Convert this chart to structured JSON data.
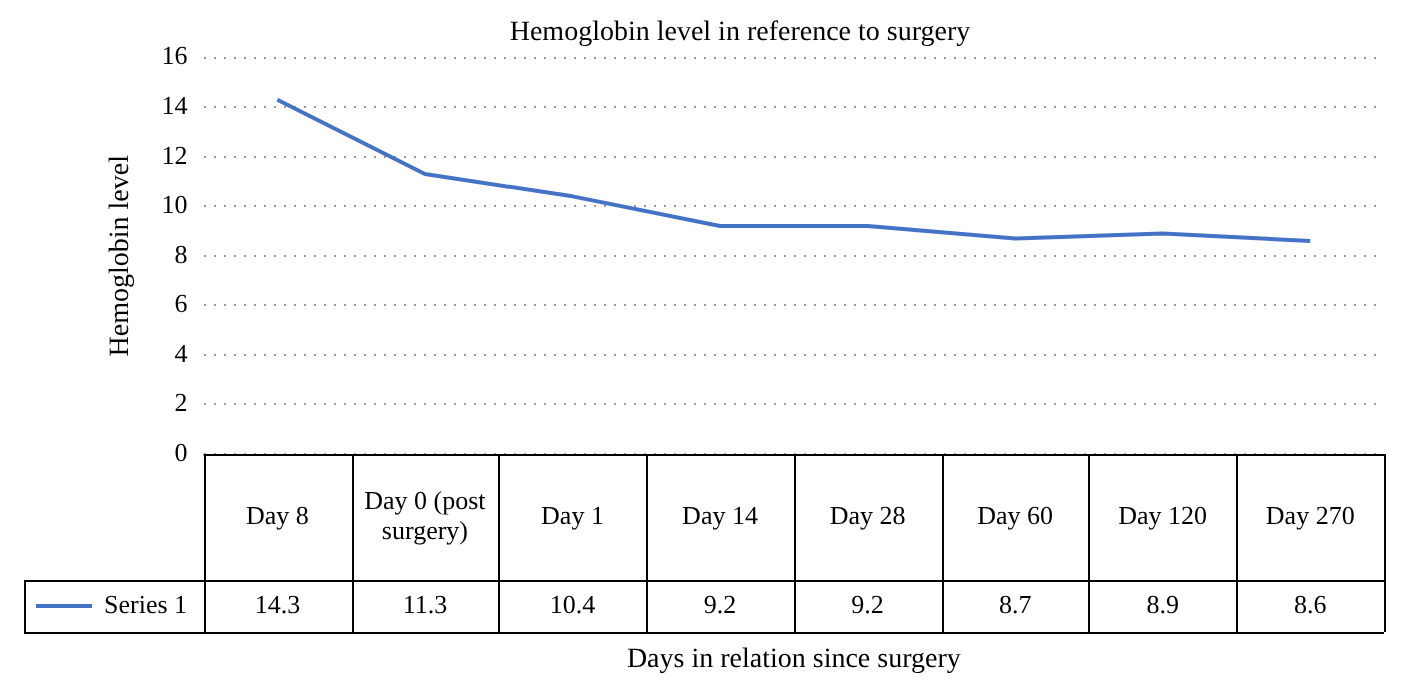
{
  "chart_data": {
    "type": "line",
    "title": "Hemoglobin level in reference to surgery",
    "xlabel": "Days in relation since surgery",
    "ylabel": "Hemoglobin level",
    "categories": [
      "Day 8",
      "Day 0 (post surgery)",
      "Day 1",
      "Day 14",
      "Day 28",
      "Day 60",
      "Day 120",
      "Day 270"
    ],
    "series": [
      {
        "name": "Series 1",
        "color": "#4472c4",
        "values": [
          14.3,
          11.3,
          10.4,
          9.2,
          9.2,
          8.7,
          8.9,
          8.6
        ]
      }
    ],
    "ylim": [
      0,
      16
    ],
    "yticks": [
      0,
      2,
      4,
      6,
      8,
      10,
      12,
      14,
      16
    ],
    "grid": "y",
    "legend": "bottom",
    "data_labels": true,
    "marker": "none",
    "line_style": "solid"
  }
}
